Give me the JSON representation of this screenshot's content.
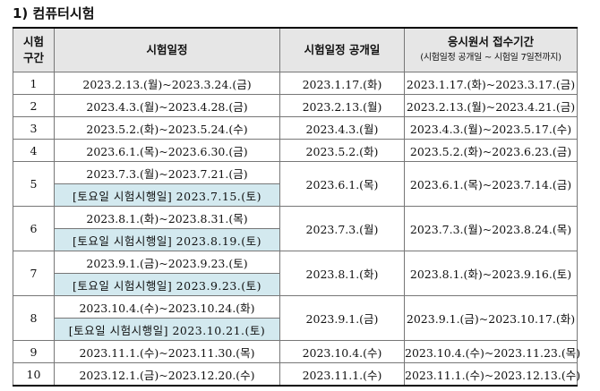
{
  "section_title": "1) 컴퓨터시험",
  "headers": {
    "col1_line1": "시험",
    "col1_line2": "구간",
    "col2": "시험일정",
    "col3": "시험일정 공개일",
    "col4_line1": "응시원서 접수기간",
    "col4_line2": "(시험일정 공개일 ~ 시험일 7일전까지)"
  },
  "rows": [
    {
      "no": "1",
      "schedule": "2023.2.13.(월)~2023.3.24.(금)",
      "open": "2023.1.17.(화)",
      "apply": "2023.1.17.(화)~2023.3.17.(금)"
    },
    {
      "no": "2",
      "schedule": "2023.4.3.(월)~2023.4.28.(금)",
      "open": "2023.2.13.(월)",
      "apply": "2023.2.13.(월)~2023.4.21.(금)"
    },
    {
      "no": "3",
      "schedule": "2023.5.2.(화)~2023.5.24.(수)",
      "open": "2023.4.3.(월)",
      "apply": "2023.4.3.(월)~2023.5.17.(수)"
    },
    {
      "no": "4",
      "schedule": "2023.6.1.(목)~2023.6.30.(금)",
      "open": "2023.5.2.(화)",
      "apply": "2023.5.2.(화)~2023.6.23.(금)"
    },
    {
      "no": "5",
      "schedule": "2023.7.3.(월)~2023.7.21.(금)",
      "saturday": "[토요일 시험시행일] 2023.7.15.(토)",
      "open": "2023.6.1.(목)",
      "apply": "2023.6.1.(목)~2023.7.14.(금)"
    },
    {
      "no": "6",
      "schedule": "2023.8.1.(화)~2023.8.31.(목)",
      "saturday": "[토요일 시험시행일] 2023.8.19.(토)",
      "open": "2023.7.3.(월)",
      "apply": "2023.7.3.(월)~2023.8.24.(목)"
    },
    {
      "no": "7",
      "schedule": "2023.9.1.(금)~2023.9.23.(토)",
      "saturday": "[토요일 시험시행일] 2023.9.23.(토)",
      "open": "2023.8.1.(화)",
      "apply": "2023.8.1.(화)~2023.9.16.(토)"
    },
    {
      "no": "8",
      "schedule": "2023.10.4.(수)~2023.10.24.(화)",
      "saturday": "[토요일 시험시행일] 2023.10.21.(토)",
      "open": "2023.9.1.(금)",
      "apply": "2023.9.1.(금)~2023.10.17.(화)"
    },
    {
      "no": "9",
      "schedule": "2023.11.1.(수)~2023.11.30.(목)",
      "open": "2023.10.4.(수)",
      "apply": "2023.10.4.(수)~2023.11.23.(목)"
    },
    {
      "no": "10",
      "schedule": "2023.12.1.(금)~2023.12.20.(수)",
      "open": "2023.11.1.(수)",
      "apply": "2023.11.1.(수)~2023.12.13.(수)"
    }
  ]
}
